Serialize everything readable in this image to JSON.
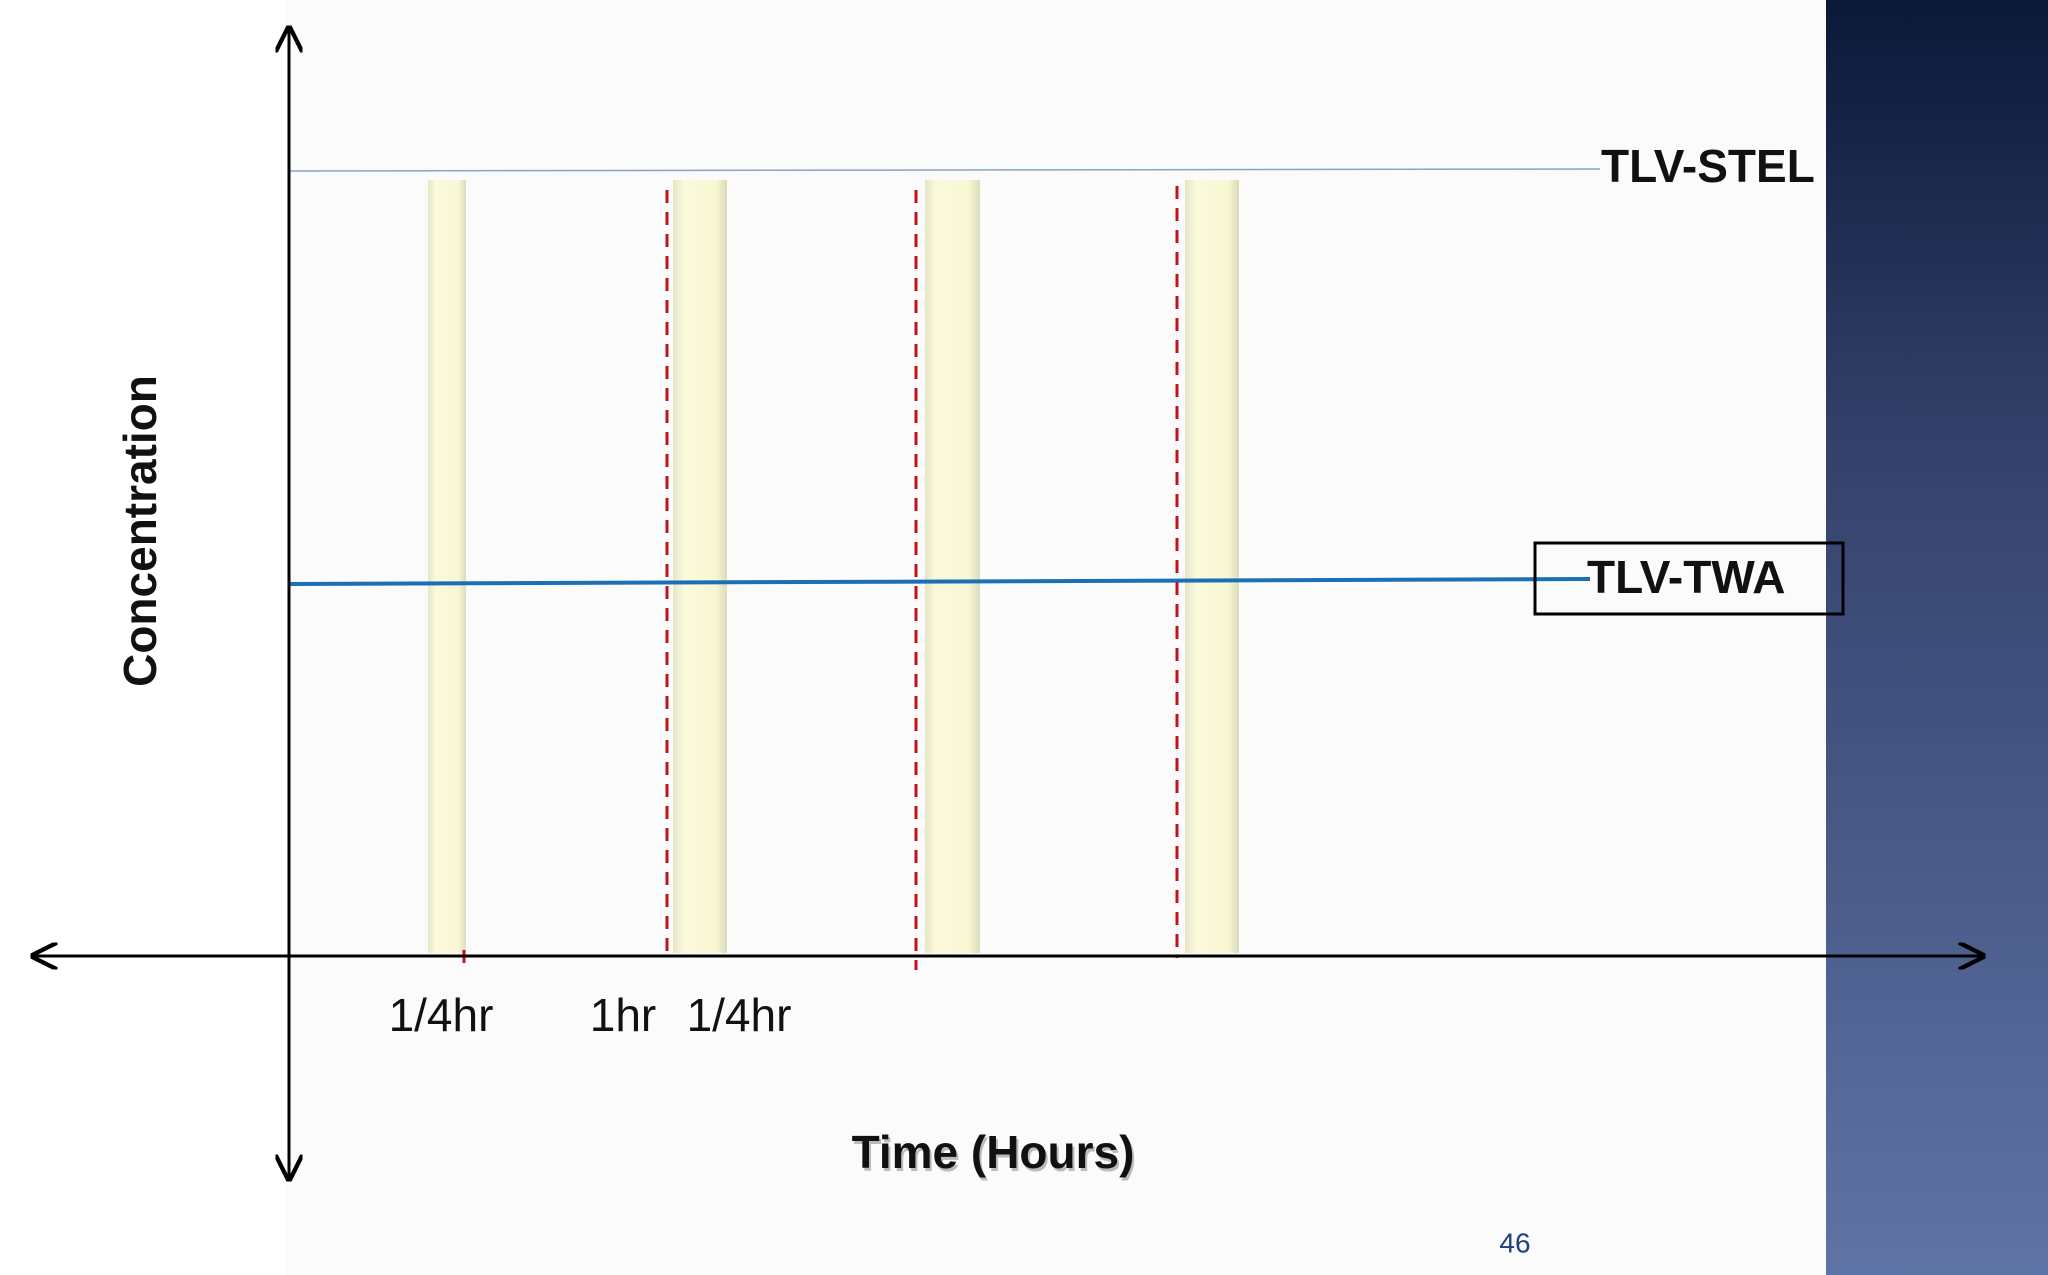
{
  "diagram": {
    "y_axis_label": "Concentration",
    "x_axis_label": "Time (Hours)",
    "lines": [
      {
        "label": "TLV-STEL"
      },
      {
        "label": "TLV-TWA"
      }
    ],
    "x_labels": [
      "1/4hr",
      "1hr",
      "1/4hr"
    ]
  },
  "page_number": "46"
}
